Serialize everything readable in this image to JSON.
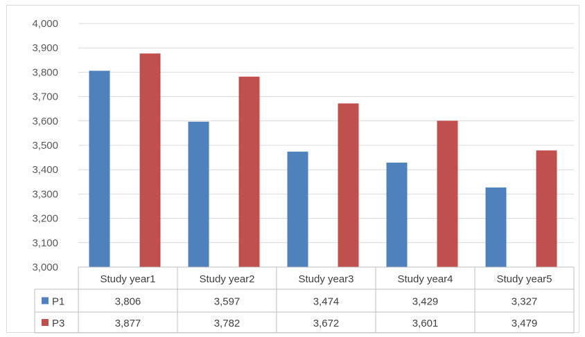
{
  "chart_data": {
    "type": "bar",
    "title": "",
    "xlabel": "",
    "ylabel": "",
    "ylim": [
      3000,
      4000
    ],
    "ytick_step": 100,
    "ytick_labels": [
      "3,000",
      "3,100",
      "3,200",
      "3,300",
      "3,400",
      "3,500",
      "3,600",
      "3,700",
      "3,800",
      "3,900",
      "4,000"
    ],
    "grid": true,
    "legend": "data-table",
    "categories": [
      "Study year1",
      "Study year2",
      "Study year3",
      "Study year4",
      "Study year5"
    ],
    "series": [
      {
        "name": "P1",
        "color": "#4f81bd",
        "values": [
          3806,
          3597,
          3474,
          3429,
          3327
        ],
        "labels": [
          "3,806",
          "3,597",
          "3,474",
          "3,429",
          "3,327"
        ]
      },
      {
        "name": "P3",
        "color": "#c0504d",
        "values": [
          3877,
          3782,
          3672,
          3601,
          3479
        ],
        "labels": [
          "3,877",
          "3,782",
          "3,672",
          "3,601",
          "3,479"
        ]
      }
    ]
  }
}
